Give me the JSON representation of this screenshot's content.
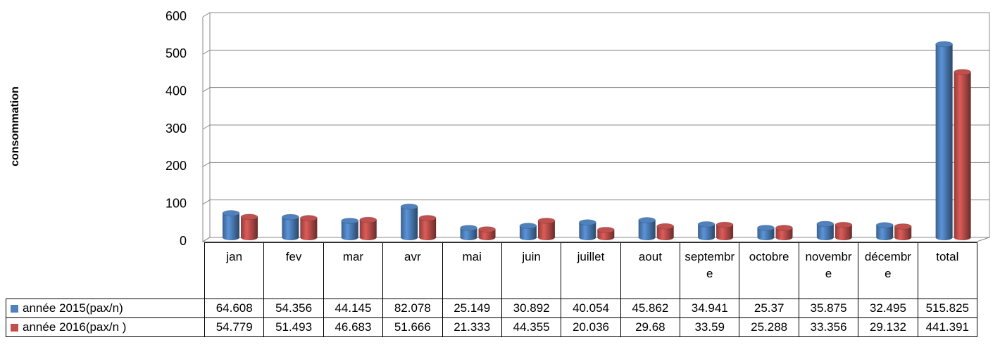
{
  "chart_data": {
    "type": "bar",
    "y_label": "consommation",
    "categories": [
      "jan",
      "fev",
      "mar",
      "avr",
      "mai",
      "juin",
      "juillet",
      "aout",
      "septembre",
      "octobre",
      "novembre",
      "décembre",
      "total"
    ],
    "series": [
      {
        "name": "année 2015(pax/n)",
        "color": "#4f81bd",
        "values": [
          64.608,
          54.356,
          44.145,
          82.078,
          25.149,
          30.892,
          40.054,
          45.862,
          34.941,
          25.37,
          35.875,
          32.495,
          515.825
        ]
      },
      {
        "name": "année 2016(pax/n )",
        "color": "#c0504d",
        "values": [
          54.779,
          51.493,
          46.683,
          51.666,
          21.333,
          44.355,
          20.036,
          29.68,
          33.59,
          25.288,
          33.356,
          29.132,
          441.391
        ]
      }
    ],
    "ylim": [
      0,
      600
    ],
    "yticks": [
      0,
      100,
      200,
      300,
      400,
      500,
      600
    ],
    "grid": true
  }
}
